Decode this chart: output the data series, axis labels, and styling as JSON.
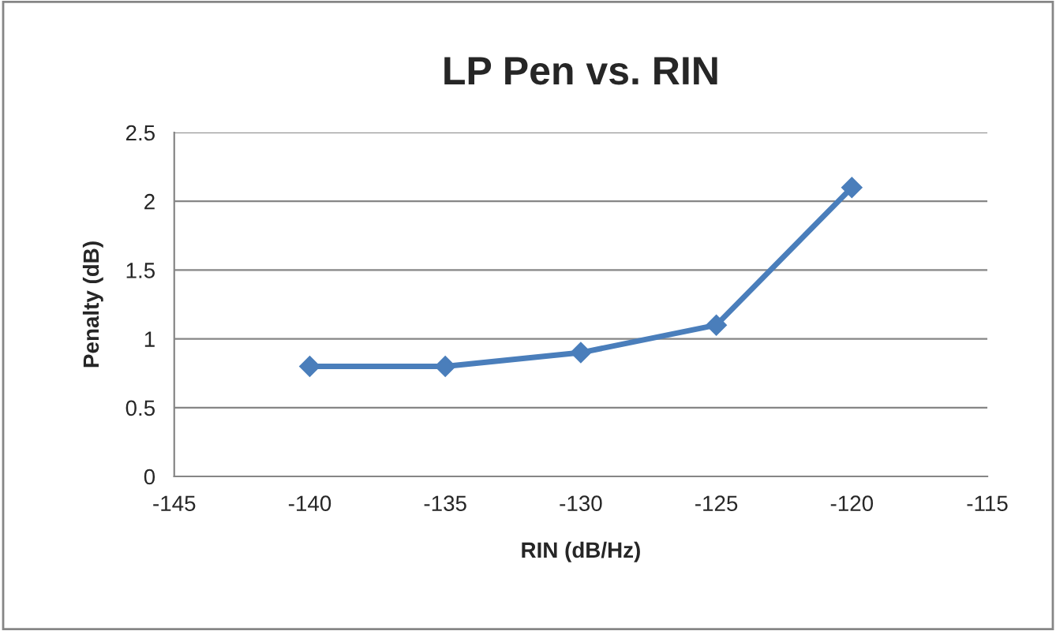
{
  "chart_data": {
    "type": "line",
    "title": "LP Pen vs. RIN",
    "xlabel": "RIN (dB/Hz)",
    "ylabel": "Penalty (dB)",
    "x": [
      -140,
      -135,
      -130,
      -125,
      -120
    ],
    "series": [
      {
        "color": "#4a7ebb",
        "values": [
          0.8,
          0.8,
          0.9,
          1.1,
          2.1
        ]
      }
    ],
    "xlim": [
      -145,
      -115
    ],
    "xticks": [
      -145,
      -140,
      -135,
      -130,
      -125,
      -120,
      -115
    ],
    "ylim": [
      0,
      2.5
    ],
    "yticks": [
      0,
      0.5,
      1,
      1.5,
      2,
      2.5
    ],
    "grid": "y",
    "marker": "diamond",
    "line_style": "solid"
  }
}
